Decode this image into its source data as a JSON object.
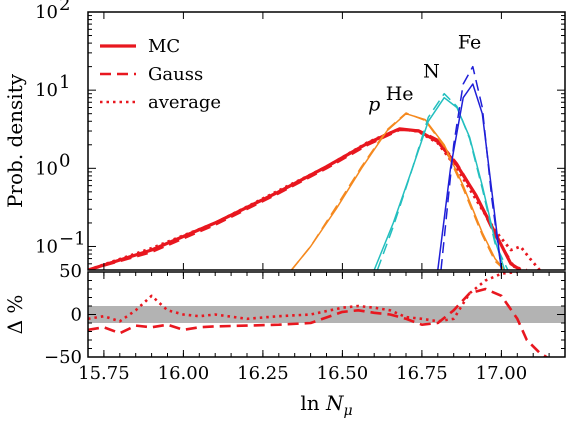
{
  "chart_data": [
    {
      "type": "line",
      "ylabel": "Prob. density",
      "xlim": [
        15.7,
        17.2
      ],
      "ylim": [
        0.05,
        100
      ],
      "yscale": "log",
      "grid": false,
      "legend": {
        "placement": "top-left",
        "entries": [
          {
            "label": "MC",
            "style": "solid"
          },
          {
            "label": "Gauss",
            "style": "dashed"
          },
          {
            "label": "average",
            "style": "dotted"
          }
        ]
      },
      "yticks": [
        {
          "value": 0.1,
          "base": "10",
          "exp": "−1"
        },
        {
          "value": 1,
          "base": "10",
          "exp": "0"
        },
        {
          "value": 10,
          "base": "10",
          "exp": "1"
        },
        {
          "value": 100,
          "base": "10",
          "exp": "2"
        }
      ],
      "extra_ytick_label": "50",
      "series": [
        {
          "name": "p",
          "color": "#e8171f",
          "curves": [
            {
              "style": "solid",
              "width": 3.2,
              "x": [
                15.7,
                15.9,
                16.1,
                16.3,
                16.45,
                16.58,
                16.68,
                16.74,
                16.8,
                16.86,
                16.92,
                16.98,
                17.03,
                17.06
              ],
              "y": [
                0.05,
                0.09,
                0.2,
                0.5,
                1.05,
                2.1,
                3.2,
                3.0,
                2.2,
                1.1,
                0.45,
                0.15,
                0.06,
                0.05
              ]
            },
            {
              "style": "dashed",
              "width": 2.5,
              "x": [
                15.7,
                15.9,
                16.1,
                16.3,
                16.45,
                16.58,
                16.68,
                16.74,
                16.8,
                16.86,
                16.92,
                16.98,
                17.04,
                17.08
              ],
              "y": [
                0.048,
                0.085,
                0.19,
                0.48,
                1.0,
                2.0,
                3.1,
                3.05,
                2.3,
                1.15,
                0.45,
                0.14,
                0.055,
                0.048
              ]
            },
            {
              "style": "dotted",
              "width": 2.8,
              "x": [
                15.7,
                15.9,
                16.1,
                16.3,
                16.45,
                16.58,
                16.68,
                16.74,
                16.8,
                16.86,
                16.92,
                16.98,
                17.03,
                17.06,
                17.09,
                17.12
              ],
              "y": [
                0.05,
                0.095,
                0.2,
                0.52,
                1.05,
                2.15,
                3.2,
                2.95,
                2.1,
                1.0,
                0.4,
                0.16,
                0.09,
                0.1,
                0.07,
                0.05
              ]
            }
          ]
        },
        {
          "name": "He",
          "color": "#f5891f",
          "curves": [
            {
              "style": "solid",
              "width": 1.5,
              "x": [
                16.34,
                16.4,
                16.48,
                16.56,
                16.64,
                16.7,
                16.76,
                16.82,
                16.88,
                16.94,
                16.98,
                17.01
              ],
              "y": [
                0.05,
                0.1,
                0.3,
                1.0,
                3.0,
                5.0,
                4.2,
                2.0,
                0.6,
                0.15,
                0.07,
                0.05
              ]
            },
            {
              "style": "dashed",
              "width": 1.5,
              "x": [
                16.34,
                16.4,
                16.48,
                16.56,
                16.64,
                16.7,
                16.76,
                16.82,
                16.88,
                16.94,
                16.98,
                17.01
              ],
              "y": [
                0.05,
                0.1,
                0.32,
                1.05,
                3.1,
                5.1,
                4.1,
                1.9,
                0.55,
                0.14,
                0.065,
                0.05
              ]
            }
          ]
        },
        {
          "name": "N",
          "color": "#23bfbf",
          "curves": [
            {
              "style": "solid",
              "width": 1.5,
              "x": [
                16.6,
                16.66,
                16.72,
                16.77,
                16.82,
                16.86,
                16.9,
                16.94,
                16.98,
                17.01
              ],
              "y": [
                0.05,
                0.2,
                1.0,
                4.0,
                8.0,
                6.0,
                2.5,
                0.6,
                0.12,
                0.05
              ]
            },
            {
              "style": "dashed",
              "width": 1.5,
              "x": [
                16.61,
                16.66,
                16.72,
                16.77,
                16.82,
                16.86,
                16.9,
                16.94,
                16.98,
                17.02
              ],
              "y": [
                0.05,
                0.18,
                1.0,
                4.5,
                9.0,
                6.2,
                2.4,
                0.55,
                0.11,
                0.05
              ]
            }
          ]
        },
        {
          "name": "Fe",
          "color": "#1f1fd8",
          "curves": [
            {
              "style": "solid",
              "width": 1.5,
              "x": [
                16.8,
                16.84,
                16.88,
                16.91,
                16.94,
                16.97,
                17.0
              ],
              "y": [
                0.05,
                1.0,
                8.0,
                12.0,
                5.0,
                0.5,
                0.05
              ]
            },
            {
              "style": "dashed",
              "width": 1.5,
              "x": [
                16.81,
                16.85,
                16.88,
                16.91,
                16.94,
                16.97,
                17.0
              ],
              "y": [
                0.05,
                2.0,
                12.0,
                20.0,
                6.0,
                0.4,
                0.05
              ]
            }
          ]
        }
      ]
    },
    {
      "type": "line",
      "xlabel": "ln N_μ",
      "ylabel": "Δ %",
      "xlim": [
        15.7,
        17.2
      ],
      "ylim": [
        -50,
        50
      ],
      "xticks": [
        15.75,
        16.0,
        16.25,
        16.5,
        16.75,
        17.0
      ],
      "xtick_labels": [
        "15.75",
        "16.00",
        "16.25",
        "16.50",
        "16.75",
        "17.00"
      ],
      "yticks": [
        -50,
        0,
        50
      ],
      "ytick_labels": [
        "−50",
        "0",
        "50"
      ],
      "band": {
        "y": [
          -10,
          10
        ],
        "color": "#b3b3b3"
      },
      "series": [
        {
          "name": "Gauss",
          "style": "dashed",
          "color": "#e8171f",
          "x": [
            15.7,
            15.75,
            15.8,
            15.85,
            15.9,
            15.95,
            16.0,
            16.05,
            16.1,
            16.2,
            16.3,
            16.4,
            16.5,
            16.55,
            16.6,
            16.65,
            16.7,
            16.75,
            16.8,
            16.85,
            16.9,
            16.95,
            17.0,
            17.05,
            17.08,
            17.12,
            17.15
          ],
          "y": [
            -18,
            -15,
            -22,
            -13,
            -15,
            -12,
            -18,
            -15,
            -14,
            -13,
            -12,
            -10,
            3,
            5,
            2,
            0,
            -5,
            -12,
            -10,
            5,
            25,
            30,
            22,
            -5,
            -30,
            -45,
            -52
          ]
        },
        {
          "name": "average",
          "style": "dotted",
          "color": "#e8171f",
          "x": [
            15.7,
            15.75,
            15.8,
            15.85,
            15.9,
            15.95,
            16.0,
            16.05,
            16.1,
            16.2,
            16.3,
            16.4,
            16.5,
            16.55,
            16.6,
            16.65,
            16.7,
            16.75,
            16.8,
            16.85,
            16.9,
            16.95,
            17.0,
            17.05
          ],
          "y": [
            -5,
            -2,
            -8,
            5,
            22,
            5,
            0,
            -2,
            0,
            -5,
            -2,
            0,
            8,
            10,
            8,
            5,
            -3,
            -5,
            -8,
            -5,
            25,
            40,
            48,
            50
          ]
        }
      ]
    }
  ]
}
